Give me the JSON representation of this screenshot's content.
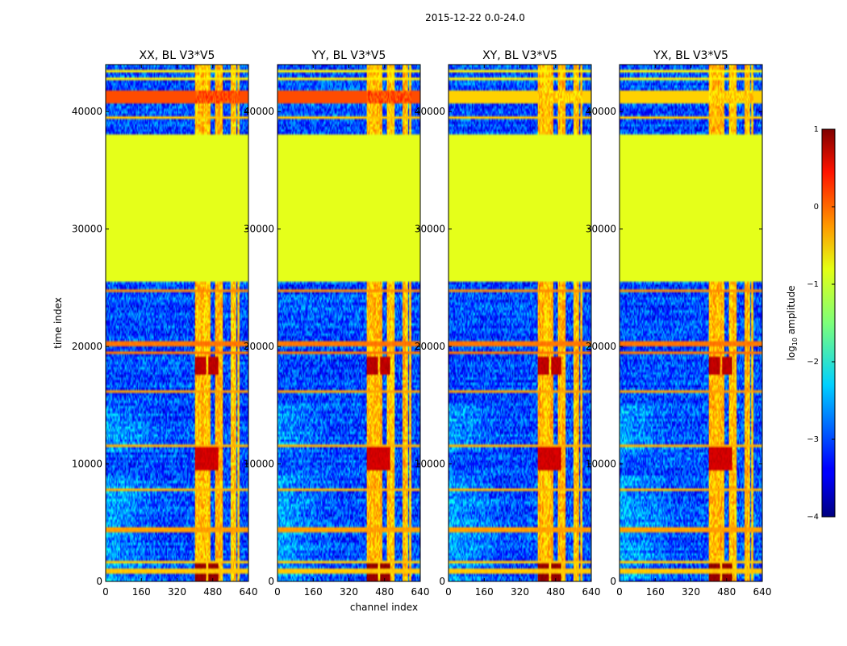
{
  "figure": {
    "suptitle": "2015-12-22 0.0-24.0"
  },
  "chart_data": {
    "type": "heatmap",
    "title": "2015-12-22 0.0-24.0",
    "xlabel": "channel index",
    "ylabel": "time index",
    "xlim": [
      0,
      640
    ],
    "ylim": [
      0,
      44000
    ],
    "xticks": [
      0,
      160,
      320,
      480,
      640
    ],
    "yticks": [
      0,
      10000,
      20000,
      30000,
      40000
    ],
    "colormap": "jet",
    "colorbar": {
      "label": "log10 amplitude",
      "label_parts": {
        "pre": "log",
        "sub": "10",
        "post": " amplitude"
      },
      "range": [
        -4,
        1
      ],
      "ticks": [
        1,
        0,
        -1,
        -2,
        -3,
        -4
      ],
      "tick_labels": [
        "1",
        "0",
        "−1",
        "−2",
        "−3",
        "−4"
      ]
    },
    "panels": [
      {
        "name": "XX",
        "title": "XX, BL V3*V5"
      },
      {
        "name": "YY",
        "title": "YY, BL V3*V5"
      },
      {
        "name": "XY",
        "title": "XY, BL V3*V5"
      },
      {
        "name": "YX",
        "title": "YX, BL V3*V5"
      }
    ],
    "features": {
      "flat_block": {
        "t_range": [
          25500,
          38000
        ],
        "value": -1.0
      },
      "high_block_parallel": {
        "t_range": [
          40600,
          41800
        ],
        "value": 0.0
      },
      "high_block_cross": {
        "t_range": [
          40600,
          41800
        ],
        "value": -0.65
      },
      "rfi_channels": [
        [
          400,
          470
        ],
        [
          490,
          525
        ],
        [
          560,
          585
        ],
        [
          590,
          600
        ]
      ],
      "saturated_regions": [
        {
          "ch": [
            400,
            450
          ],
          "t": [
            0,
            1800
          ],
          "value": 0.9
        },
        {
          "ch": [
            460,
            505
          ],
          "t": [
            0,
            1800
          ],
          "value": 0.9
        },
        {
          "ch": [
            400,
            450
          ],
          "t": [
            17500,
            19200
          ],
          "value": 0.7
        },
        {
          "ch": [
            460,
            505
          ],
          "t": [
            17500,
            19200
          ],
          "value": 0.7
        },
        {
          "ch": [
            400,
            505
          ],
          "t": [
            9500,
            11500
          ],
          "value": 0.6
        }
      ],
      "flagged_rows": [
        {
          "t": 19500,
          "value": -0.2
        },
        {
          "t": 20200,
          "value": -0.2
        },
        {
          "t": 24800,
          "value": -0.3
        },
        {
          "t": 16200,
          "value": -0.4
        },
        {
          "t": 11500,
          "value": -0.5
        },
        {
          "t": 7800,
          "value": -0.5
        },
        {
          "t": 4400,
          "value": -0.4
        },
        {
          "t": 1600,
          "value": -0.6
        },
        {
          "t": 900,
          "value": -0.6
        },
        {
          "t": 38000,
          "value": -0.5
        },
        {
          "t": 39500,
          "value": -0.6
        },
        {
          "t": 42800,
          "value": -0.8
        },
        {
          "t": 43500,
          "value": -0.8
        }
      ]
    }
  }
}
